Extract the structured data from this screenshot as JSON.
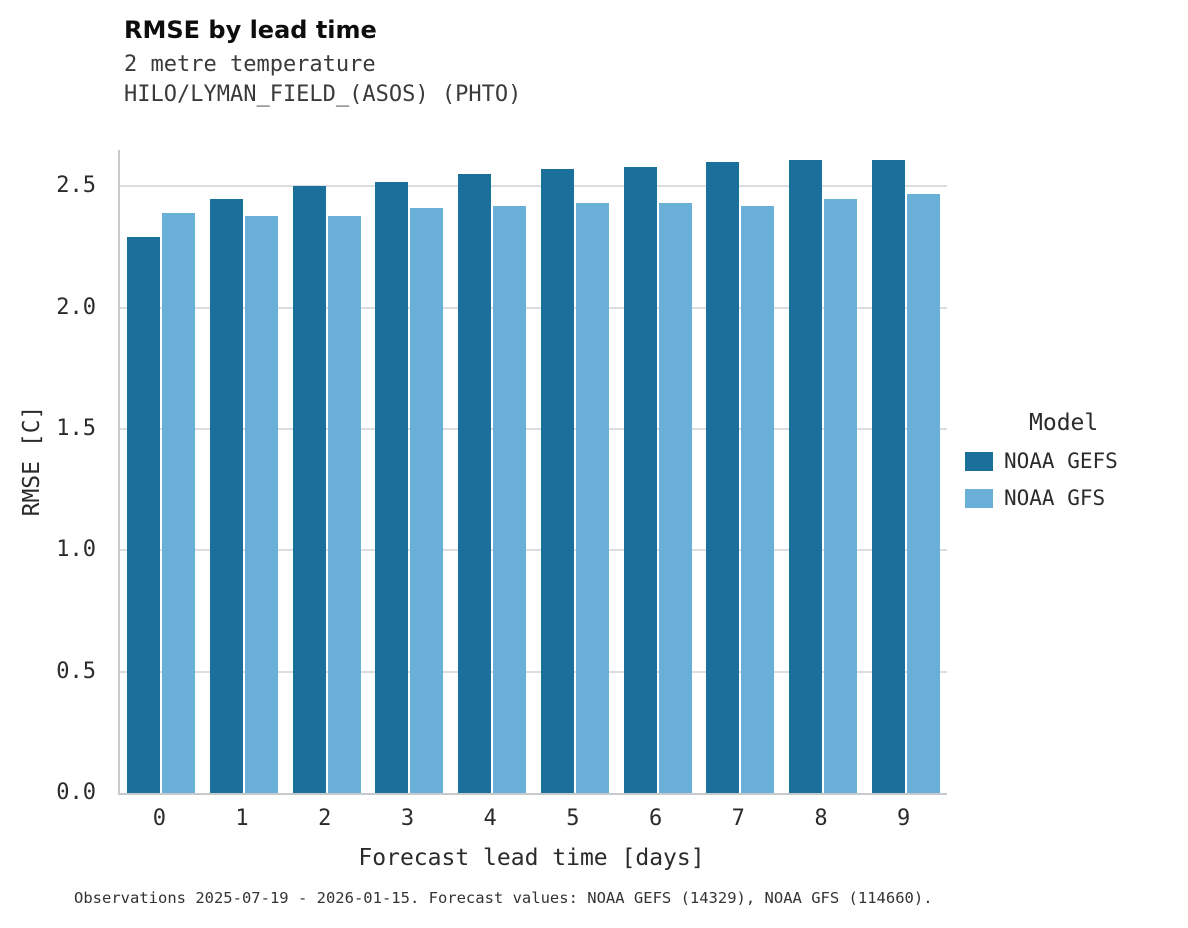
{
  "figure": {
    "footer": "Observations 2025-07-19 - 2026-01-15. Forecast values: NOAA GEFS (14329), NOAA GFS (114660)."
  },
  "chart_data": {
    "type": "bar",
    "title": "RMSE by lead time",
    "subtitles": [
      "2 metre temperature",
      "HILO/LYMAN_FIELD_(ASOS) (PHTO)"
    ],
    "xlabel": "Forecast lead time [days]",
    "ylabel": "RMSE [C]",
    "legend_title": "Model",
    "legend_position": "right",
    "grid": true,
    "categories": [
      "0",
      "1",
      "2",
      "3",
      "4",
      "5",
      "6",
      "7",
      "8",
      "9"
    ],
    "yticks": [
      0.0,
      0.5,
      1.0,
      1.5,
      2.0,
      2.5
    ],
    "ylim": [
      0,
      2.65
    ],
    "series": [
      {
        "name": "NOAA GEFS",
        "color": "#1a6f9b",
        "values": [
          2.29,
          2.45,
          2.5,
          2.52,
          2.55,
          2.57,
          2.58,
          2.6,
          2.61,
          2.61
        ]
      },
      {
        "name": "NOAA GFS",
        "color": "#69afd7",
        "values": [
          2.39,
          2.38,
          2.38,
          2.41,
          2.42,
          2.43,
          2.43,
          2.42,
          2.45,
          2.47
        ]
      }
    ]
  }
}
